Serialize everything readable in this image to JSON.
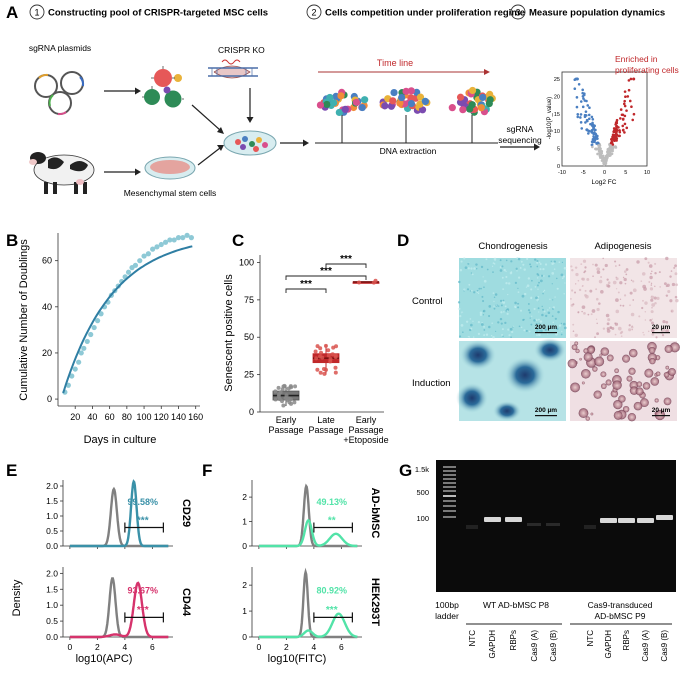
{
  "panelA": {
    "letter": "A",
    "steps": [
      {
        "num": "1",
        "title": "Constructing pool of CRISPR-targeted MSC cells"
      },
      {
        "num": "2",
        "title": "Cells competition under proliferation regime"
      },
      {
        "num": "3",
        "title": "Measure population dynamics"
      }
    ],
    "sgrna_plasmids": "sgRNA plasmids",
    "crispr_ko": "CRISPR KO",
    "msc_label": "Mesenchymal stem cells",
    "time_line": "Time line",
    "dna_extraction": "DNA extraction",
    "sgrna_seq": "sgRNA sequencing",
    "enriched_label": "Enriched in proliferating cells",
    "volcano": {
      "ylabel": "-log10(P_value)",
      "xlabel": "Log2 FC",
      "xticks": [
        "-10",
        "-5",
        "0",
        "5",
        "10"
      ],
      "yticks": [
        "0",
        "5",
        "10",
        "15",
        "20",
        "25"
      ],
      "colors": {
        "down": "#4a7fc1",
        "up": "#c0282b",
        "ns": "#bdbdbd"
      }
    }
  },
  "panelB": {
    "letter": "B",
    "chart_data": {
      "type": "scatter",
      "ylabel": "Cumulative Number of Doublings",
      "xlabel": "Days in culture",
      "xlim": [
        0,
        165
      ],
      "ylim": [
        -3,
        72
      ],
      "xticks": [
        "20",
        "40",
        "60",
        "80",
        "100",
        "120",
        "140",
        "160"
      ],
      "yticks": [
        "0",
        "20",
        "40",
        "60"
      ],
      "color": "#3f8fae",
      "points": [
        [
          8,
          3
        ],
        [
          12,
          6
        ],
        [
          16,
          10
        ],
        [
          20,
          13
        ],
        [
          24,
          16
        ],
        [
          27,
          20
        ],
        [
          30,
          22
        ],
        [
          34,
          25
        ],
        [
          38,
          28
        ],
        [
          42,
          31
        ],
        [
          46,
          34
        ],
        [
          50,
          37
        ],
        [
          54,
          40
        ],
        [
          58,
          42
        ],
        [
          62,
          45
        ],
        [
          66,
          47
        ],
        [
          70,
          49
        ],
        [
          74,
          51
        ],
        [
          78,
          53
        ],
        [
          82,
          55
        ],
        [
          86,
          57
        ],
        [
          90,
          58
        ],
        [
          95,
          60
        ],
        [
          100,
          62
        ],
        [
          105,
          63
        ],
        [
          110,
          65
        ],
        [
          115,
          66
        ],
        [
          120,
          67
        ],
        [
          125,
          68
        ],
        [
          130,
          69
        ],
        [
          135,
          69
        ],
        [
          140,
          70
        ],
        [
          145,
          70
        ],
        [
          150,
          71
        ],
        [
          155,
          70
        ]
      ]
    }
  },
  "panelC": {
    "letter": "C",
    "chart_data": {
      "type": "box",
      "ylabel": "Senescent positive cells",
      "ylim": [
        0,
        105
      ],
      "yticks": [
        "0",
        "25",
        "50",
        "75",
        "100"
      ],
      "categories": [
        "Early Passage",
        "Late Passage",
        "Early Passage +Etoposide"
      ],
      "medians": [
        11,
        36,
        87
      ],
      "q1": [
        8,
        33,
        87
      ],
      "q3": [
        14,
        39,
        87
      ],
      "whisker_low": [
        4,
        25,
        87
      ],
      "whisker_high": [
        18,
        45,
        87
      ],
      "colors": [
        "#555555",
        "#c0282b",
        "#c0282b"
      ],
      "significance": [
        "***",
        "***",
        "***"
      ]
    }
  },
  "panelD": {
    "letter": "D",
    "cols": [
      "Chondrogenesis",
      "Adipogenesis"
    ],
    "rows": [
      "Control",
      "Induction"
    ],
    "scalebars": [
      "200 µm",
      "20 µm",
      "200 µm",
      "20 µm"
    ]
  },
  "panelE": {
    "letter": "E",
    "ylabel": "Density",
    "xlabel": "log10(APC)",
    "xticks": [
      "0",
      "2",
      "4",
      "6"
    ],
    "charts": [
      {
        "marker": "CD29",
        "percent": "99.58%",
        "stars": "***",
        "color": "#3a91a8",
        "yticks": [
          "0.0",
          "0.5",
          "1.0",
          "1.5",
          "2.0"
        ]
      },
      {
        "marker": "CD44",
        "percent": "93.67%",
        "stars": "***",
        "color": "#d6336c",
        "yticks": [
          "0.0",
          "0.5",
          "1.0",
          "1.5",
          "2.0"
        ]
      }
    ]
  },
  "panelF": {
    "letter": "F",
    "xlabel": "log10(FITC)",
    "xticks": [
      "0",
      "2",
      "4",
      "6"
    ],
    "charts": [
      {
        "marker": "AD-bMSC",
        "percent": "49.13%",
        "stars": "**",
        "color": "#52e3a8",
        "yticks": [
          "0",
          "1",
          "2"
        ]
      },
      {
        "marker": "HEK293T",
        "percent": "80.92%",
        "stars": "***",
        "color": "#52e3a8",
        "yticks": [
          "0",
          "1",
          "2"
        ]
      }
    ]
  },
  "panelG": {
    "letter": "G",
    "ladder_marks": [
      "1.5k",
      "500",
      "100"
    ],
    "ladder_label": "100bp ladder",
    "group1": "WT AD-bMSC P8",
    "group2": "Cas9-transduced AD-bMSC P9",
    "lanes1": [
      "NTC",
      "GAPDH",
      "RBPs",
      "Cas9 (A)",
      "Cas9 (B)"
    ],
    "lanes2": [
      "NTC",
      "GAPDH",
      "RBPs",
      "Cas9 (A)",
      "Cas9 (B)"
    ]
  }
}
